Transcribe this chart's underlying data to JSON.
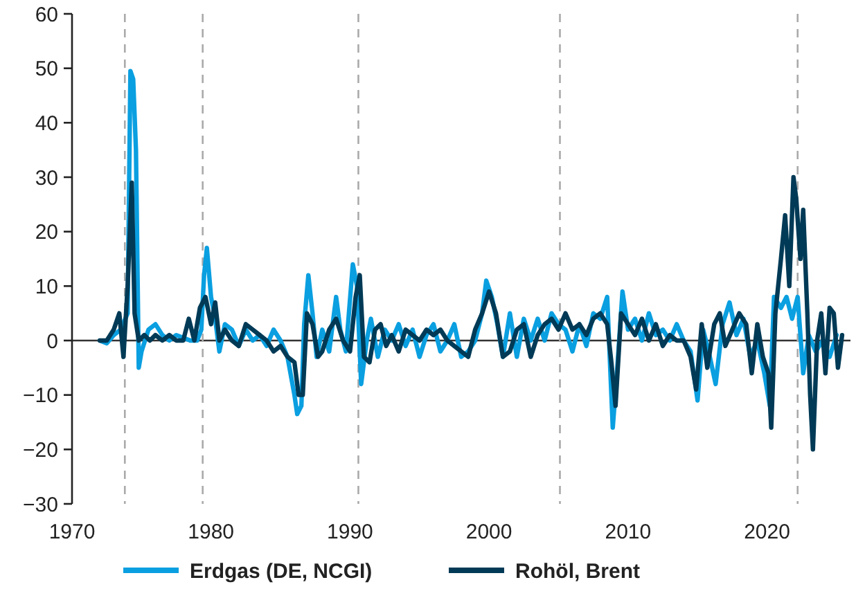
{
  "chart_data": {
    "type": "line",
    "xlim": [
      1970,
      2026
    ],
    "xticks": [
      1970,
      1980,
      1990,
      2000,
      2010,
      2020
    ],
    "ylim": [
      -30,
      60
    ],
    "yticks": [
      -30,
      -20,
      -10,
      0,
      10,
      20,
      30,
      40,
      50,
      60
    ],
    "grid": false,
    "legend": "bottom",
    "marker": "none",
    "line_style": "solid",
    "ref_lines": [
      {
        "axis": "y",
        "value": 0,
        "color": "#333333",
        "line_style": "solid"
      },
      {
        "axis": "x",
        "value": 1973.8,
        "color": "#aaaaaa",
        "line_style": "dashed"
      },
      {
        "axis": "x",
        "value": 1979.4,
        "color": "#aaaaaa",
        "line_style": "dashed"
      },
      {
        "axis": "x",
        "value": 1990.6,
        "color": "#aaaaaa",
        "line_style": "dashed"
      },
      {
        "axis": "x",
        "value": 2005.1,
        "color": "#aaaaaa",
        "line_style": "dashed"
      },
      {
        "axis": "x",
        "value": 2022.2,
        "color": "#aaaaaa",
        "line_style": "dashed"
      }
    ],
    "series": [
      {
        "name": "Erdgas (DE, NCGI)",
        "color": "#0a9fe0",
        "x": [
          1972,
          1972.5,
          1973,
          1973.5,
          1974,
          1974.2,
          1974.4,
          1974.6,
          1974.8,
          1975,
          1975.5,
          1976,
          1976.5,
          1977,
          1977.5,
          1978,
          1978.5,
          1979,
          1979.3,
          1979.5,
          1979.7,
          1980,
          1980.3,
          1980.6,
          1981,
          1981.5,
          1982,
          1982.5,
          1983,
          1983.5,
          1984,
          1984.5,
          1985,
          1985.5,
          1986,
          1986.2,
          1986.5,
          1986.7,
          1987,
          1987.3,
          1987.6,
          1988,
          1988.5,
          1989,
          1989.3,
          1989.7,
          1990.2,
          1990.5,
          1990.8,
          1991.2,
          1991.5,
          1992,
          1992.5,
          1993,
          1993.5,
          1994,
          1994.5,
          1995,
          1995.5,
          1996,
          1996.5,
          1997,
          1997.5,
          1998,
          1998.5,
          1999,
          1999.5,
          1999.8,
          2000.2,
          2000.6,
          2001,
          2001.5,
          2002,
          2002.5,
          2003,
          2003.5,
          2004,
          2004.5,
          2005,
          2005.5,
          2006,
          2006.5,
          2007,
          2007.5,
          2008,
          2008.5,
          2008.9,
          2009.2,
          2009.6,
          2010,
          2010.5,
          2011,
          2011.5,
          2012,
          2012.5,
          2013,
          2013.5,
          2014,
          2014.5,
          2015,
          2015.4,
          2015.8,
          2016.3,
          2016.8,
          2017.3,
          2017.8,
          2018.3,
          2018.8,
          2019.3,
          2019.8,
          2020.2,
          2020.5,
          2021,
          2021.4,
          2021.8,
          2022.2,
          2022.6,
          2023,
          2023.5,
          2024,
          2024.5,
          2025
        ],
        "values": [
          0,
          -0.5,
          1,
          2,
          5,
          49.5,
          48,
          35,
          -5,
          -2,
          2,
          3,
          1,
          0,
          1,
          0.5,
          0,
          0,
          2,
          12,
          17,
          8,
          4,
          -2,
          3,
          2,
          -1,
          2,
          0,
          1,
          -1,
          2,
          0,
          -3,
          -10,
          -13.5,
          -12,
          3,
          12,
          5,
          -3,
          2,
          -2,
          8,
          2,
          -2,
          14,
          10,
          -8,
          0,
          4,
          -3,
          2,
          0,
          3,
          -1,
          2,
          -3,
          1,
          3,
          -2,
          0,
          3,
          -3,
          -2,
          0,
          5,
          11,
          8,
          3,
          -3,
          5,
          -3,
          4,
          0,
          4,
          0,
          5,
          3,
          2,
          -2,
          3,
          -1,
          5,
          4,
          8,
          -16,
          -6,
          9,
          2,
          4,
          0,
          5,
          1,
          2,
          0,
          3,
          0,
          -2,
          -11,
          2,
          -2,
          -8,
          3,
          7,
          1,
          4,
          -3,
          0,
          -6,
          -12,
          8,
          6,
          8,
          4,
          8,
          -6,
          1,
          -2,
          0,
          -3,
          1
        ]
      },
      {
        "name": "Rohöl, Brent",
        "color": "#003a56",
        "x": [
          1972,
          1972.5,
          1973,
          1973.4,
          1973.7,
          1974,
          1974.3,
          1974.5,
          1974.8,
          1975.2,
          1975.6,
          1976,
          1976.5,
          1977,
          1977.5,
          1978,
          1978.4,
          1978.8,
          1979.2,
          1979.6,
          1980,
          1980.3,
          1980.6,
          1981,
          1981.5,
          1982,
          1982.5,
          1983,
          1983.5,
          1984,
          1984.5,
          1985,
          1985.5,
          1986,
          1986.3,
          1986.6,
          1986.9,
          1987.3,
          1987.7,
          1988,
          1988.5,
          1989,
          1989.5,
          1990,
          1990.4,
          1990.7,
          1991,
          1991.4,
          1991.8,
          1992.2,
          1992.6,
          1993,
          1993.5,
          1994,
          1994.5,
          1995,
          1995.5,
          1996,
          1996.5,
          1997,
          1997.5,
          1998,
          1998.5,
          1999,
          1999.5,
          2000,
          2000.5,
          2001,
          2001.5,
          2002,
          2002.5,
          2003,
          2003.5,
          2004,
          2004.5,
          2005,
          2005.5,
          2006,
          2006.5,
          2007,
          2007.5,
          2008,
          2008.5,
          2008.8,
          2009.1,
          2009.5,
          2010,
          2010.5,
          2011,
          2011.5,
          2012,
          2012.5,
          2013,
          2013.5,
          2014,
          2014.5,
          2014.9,
          2015.3,
          2015.7,
          2016.2,
          2016.6,
          2017,
          2017.5,
          2018,
          2018.5,
          2018.9,
          2019.3,
          2019.7,
          2020.1,
          2020.3,
          2020.6,
          2021,
          2021.3,
          2021.6,
          2021.9,
          2022.1,
          2022.4,
          2022.6,
          2022.9,
          2023.1,
          2023.3,
          2023.6,
          2023.9,
          2024.2,
          2024.5,
          2024.8,
          2025.1,
          2025.4
        ],
        "values": [
          0,
          0,
          2,
          5,
          -3,
          10,
          29,
          5,
          0,
          1,
          0,
          1,
          0,
          1,
          0,
          0,
          4,
          0,
          6,
          8,
          3,
          7,
          0,
          2,
          0,
          -1,
          3,
          2,
          1,
          0,
          -2,
          -1,
          -3,
          -4,
          -10,
          -10,
          5,
          3,
          -3,
          -2,
          2,
          4,
          0,
          -2,
          8,
          12,
          -3,
          -4,
          2,
          3,
          -1,
          1,
          -2,
          2,
          1,
          0,
          2,
          1,
          2,
          0,
          -1,
          -2,
          -3,
          2,
          5,
          9,
          5,
          -3,
          -2,
          2,
          3,
          -3,
          1,
          3,
          4,
          2,
          5,
          2,
          3,
          1,
          4,
          5,
          3,
          -4,
          -12,
          5,
          3,
          1,
          4,
          0,
          3,
          -1,
          1,
          0,
          0,
          -3,
          -9,
          3,
          -5,
          3,
          5,
          -1,
          2,
          5,
          3,
          -6,
          3,
          -3,
          -6,
          -16,
          5,
          15,
          23,
          10,
          30,
          26,
          15,
          24,
          5,
          -10,
          -20,
          0,
          5,
          -6,
          6,
          5,
          -5,
          1
        ]
      }
    ]
  }
}
